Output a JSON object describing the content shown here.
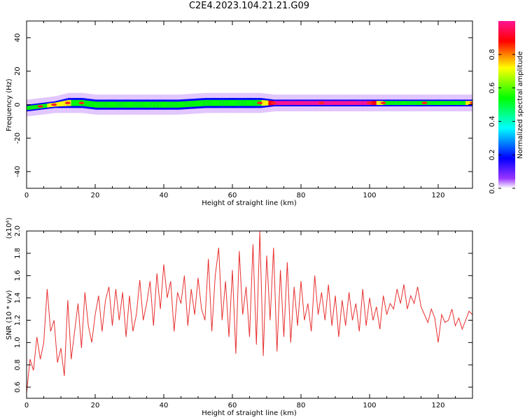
{
  "title": "C2E4.2023.104.21.21.G09",
  "chart_data": [
    {
      "type": "heatmap",
      "xlabel": "Height of straight line (km)",
      "ylabel": "Frequency (Hz)",
      "xlim": [
        0,
        130
      ],
      "ylim": [
        -50,
        50
      ],
      "xticks": [
        0,
        20,
        40,
        60,
        80,
        100,
        120
      ],
      "yticks": [
        -40,
        -20,
        0,
        20,
        40
      ],
      "colorbar": {
        "label": "Normalized spectral amplitude",
        "range": [
          0,
          1
        ],
        "ticks": [
          "0.0",
          "0.2",
          "0.4",
          "0.6",
          "0.8"
        ],
        "colors": [
          "#ffffff",
          "#9933ff",
          "#0000ff",
          "#00ffff",
          "#00ff00",
          "#ffff00",
          "#ff0000",
          "#ff1493"
        ]
      },
      "band": [
        {
          "x": 0,
          "center": -2,
          "halfwidth": 2,
          "amp": 0.55
        },
        {
          "x": 4,
          "center": -1,
          "halfwidth": 2,
          "amp": 0.6
        },
        {
          "x": 8,
          "center": 0,
          "halfwidth": 2,
          "amp": 0.7
        },
        {
          "x": 12,
          "center": 1,
          "halfwidth": 3,
          "amp": 0.65
        },
        {
          "x": 16,
          "center": 1,
          "halfwidth": 3,
          "amp": 0.6
        },
        {
          "x": 20,
          "center": 0,
          "halfwidth": 3,
          "amp": 0.55
        },
        {
          "x": 28,
          "center": 0,
          "halfwidth": 3,
          "amp": 0.5
        },
        {
          "x": 36,
          "center": 0,
          "halfwidth": 3,
          "amp": 0.5
        },
        {
          "x": 44,
          "center": 0,
          "halfwidth": 3,
          "amp": 0.5
        },
        {
          "x": 52,
          "center": 1,
          "halfwidth": 3,
          "amp": 0.55
        },
        {
          "x": 60,
          "center": 1,
          "halfwidth": 3,
          "amp": 0.55
        },
        {
          "x": 68,
          "center": 1,
          "halfwidth": 3,
          "amp": 0.6
        },
        {
          "x": 72,
          "center": 1,
          "halfwidth": 2,
          "amp": 0.95
        },
        {
          "x": 86,
          "center": 1,
          "halfwidth": 2,
          "amp": 0.95
        },
        {
          "x": 100,
          "center": 1,
          "halfwidth": 2,
          "amp": 0.95
        },
        {
          "x": 104,
          "center": 1,
          "halfwidth": 2,
          "amp": 0.6
        },
        {
          "x": 116,
          "center": 1,
          "halfwidth": 2,
          "amp": 0.6
        },
        {
          "x": 130,
          "center": 1,
          "halfwidth": 2,
          "amp": 0.65
        }
      ]
    },
    {
      "type": "line",
      "xlabel": "Height of straight line (km)",
      "ylabel": "SNR (10 * v/v)",
      "y_multiplier": "(x10⁴)",
      "xlim": [
        0,
        130
      ],
      "ylim": [
        0.5,
        2.0
      ],
      "xticks": [
        0,
        20,
        40,
        60,
        80,
        100,
        120
      ],
      "yticks": [
        "0.6",
        "0.8",
        "1.0",
        "1.2",
        "1.4",
        "1.6",
        "1.8",
        "2.0"
      ],
      "color": "#e83030",
      "series": [
        {
          "x": [
            0,
            1,
            2,
            3,
            4,
            5,
            6,
            7,
            8,
            9,
            10,
            11,
            12,
            13,
            14,
            15,
            16,
            17,
            18,
            19,
            20,
            21,
            22,
            23,
            24,
            25,
            26,
            27,
            28,
            29,
            30,
            31,
            32,
            33,
            34,
            35,
            36,
            37,
            38,
            39,
            40,
            41,
            42,
            43,
            44,
            45,
            46,
            47,
            48,
            49,
            50,
            51,
            52,
            53,
            54,
            55,
            56,
            57,
            58,
            59,
            60,
            61,
            62,
            63,
            64,
            65,
            66,
            67,
            68,
            69,
            70,
            71,
            72,
            73,
            74,
            75,
            76,
            77,
            78,
            79,
            80,
            81,
            82,
            83,
            84,
            85,
            86,
            87,
            88,
            89,
            90,
            91,
            92,
            93,
            94,
            95,
            96,
            97,
            98,
            99,
            100,
            101,
            102,
            103,
            104,
            105,
            106,
            107,
            108,
            109,
            110,
            111,
            112,
            113,
            114,
            115,
            116,
            117,
            118,
            119,
            120,
            121,
            122,
            123,
            124,
            125,
            126,
            127,
            128,
            129,
            130
          ],
          "values": [
            0.55,
            0.85,
            0.75,
            1.05,
            0.85,
            1.0,
            1.48,
            1.1,
            1.2,
            0.82,
            0.95,
            0.7,
            1.38,
            0.85,
            1.1,
            1.35,
            0.95,
            1.45,
            1.15,
            1.0,
            1.25,
            1.42,
            1.1,
            1.38,
            1.5,
            1.15,
            1.48,
            1.2,
            1.45,
            1.05,
            1.42,
            1.1,
            1.25,
            1.56,
            1.2,
            1.35,
            1.55,
            1.15,
            1.62,
            1.3,
            1.7,
            1.4,
            1.55,
            1.1,
            1.45,
            1.35,
            1.6,
            1.15,
            1.48,
            1.25,
            1.58,
            1.3,
            1.2,
            1.75,
            1.1,
            1.6,
            1.85,
            1.2,
            1.55,
            1.05,
            1.65,
            0.9,
            1.82,
            1.25,
            1.5,
            1.05,
            1.88,
            0.98,
            2.0,
            0.88,
            1.78,
            1.2,
            1.85,
            0.92,
            1.65,
            1.05,
            1.72,
            1.0,
            1.5,
            1.15,
            1.55,
            1.2,
            1.35,
            1.1,
            1.6,
            1.25,
            1.45,
            1.2,
            1.52,
            1.15,
            1.42,
            1.05,
            1.38,
            1.15,
            1.45,
            1.2,
            1.35,
            1.1,
            1.48,
            1.15,
            1.4,
            1.2,
            1.32,
            1.12,
            1.42,
            1.25,
            1.35,
            1.3,
            1.48,
            1.35,
            1.52,
            1.3,
            1.42,
            1.35,
            1.5,
            1.32,
            1.25,
            1.18,
            1.3,
            1.22,
            1.0,
            1.25,
            1.18,
            1.2,
            1.3,
            1.15,
            1.22,
            1.12,
            1.2,
            1.28,
            1.25
          ]
        }
      ]
    }
  ]
}
